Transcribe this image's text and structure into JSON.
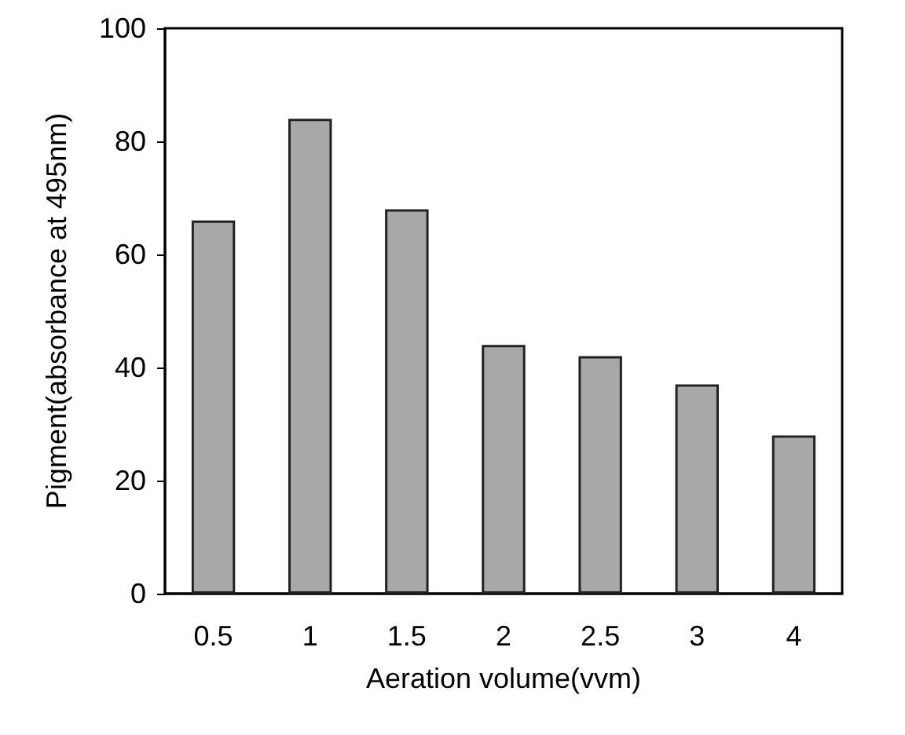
{
  "chart_data": {
    "type": "bar",
    "xlabel": "Aeration volume(vvm)",
    "ylabel": "Pigment(absorbance at 495nm)",
    "categories": [
      "0.5",
      "1",
      "1.5",
      "2",
      "2.5",
      "3",
      "4"
    ],
    "values": [
      66,
      84,
      68,
      44,
      42,
      37,
      28
    ],
    "color": "#a8a8a8",
    "ylim": [
      0,
      100
    ],
    "yticks": [
      0,
      20,
      40,
      60,
      80,
      100
    ],
    "grid": false
  }
}
